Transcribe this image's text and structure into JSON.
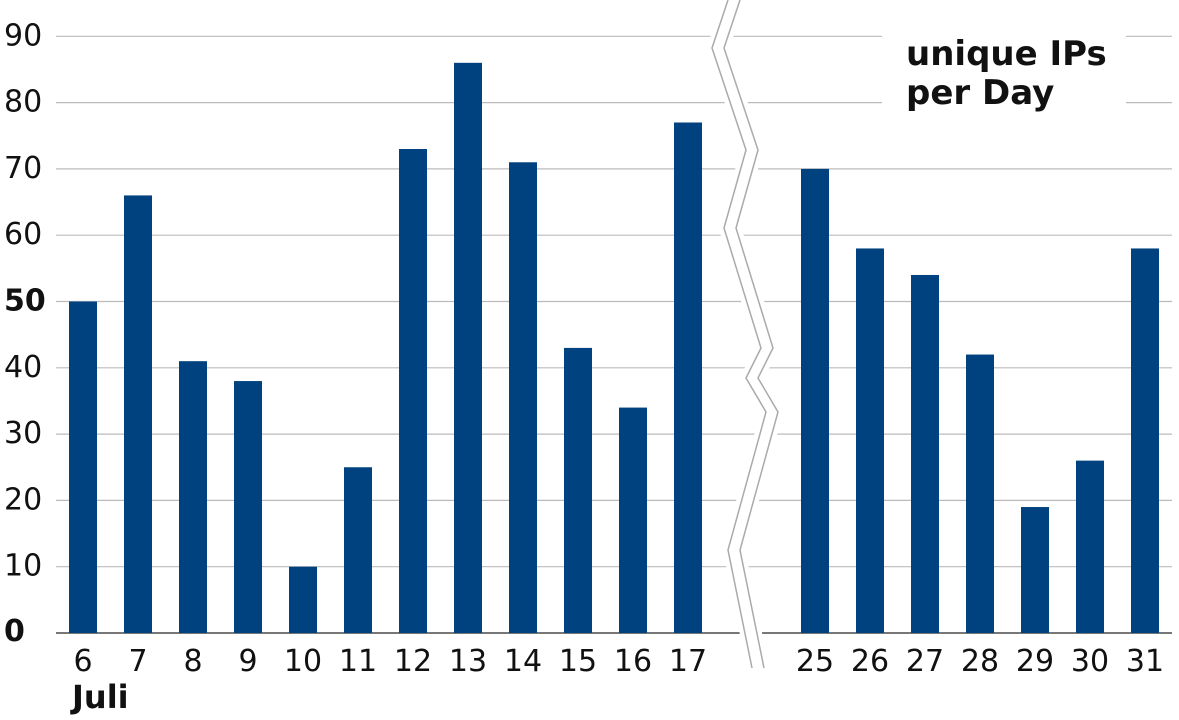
{
  "chart_data": {
    "type": "bar",
    "title_lines": [
      "unique IPs",
      "per Day"
    ],
    "xlabel": "Juli",
    "ylabel": "",
    "ylim": [
      0,
      90
    ],
    "yticks": [
      "0",
      "10",
      "20",
      "30",
      "40",
      "50",
      "60",
      "70",
      "80",
      "90"
    ],
    "grid": true,
    "axis_break": "between 17 and 25",
    "bar_color": "#00427f",
    "grid_color": "#bbbbbb",
    "categories": [
      "6",
      "7",
      "8",
      "9",
      "10",
      "11",
      "12",
      "13",
      "14",
      "15",
      "16",
      "17",
      "25",
      "26",
      "27",
      "28",
      "29",
      "30",
      "31"
    ],
    "values": [
      50,
      66,
      41,
      38,
      10,
      25,
      73,
      86,
      71,
      43,
      34,
      77,
      70,
      58,
      54,
      42,
      19,
      26,
      58
    ]
  }
}
